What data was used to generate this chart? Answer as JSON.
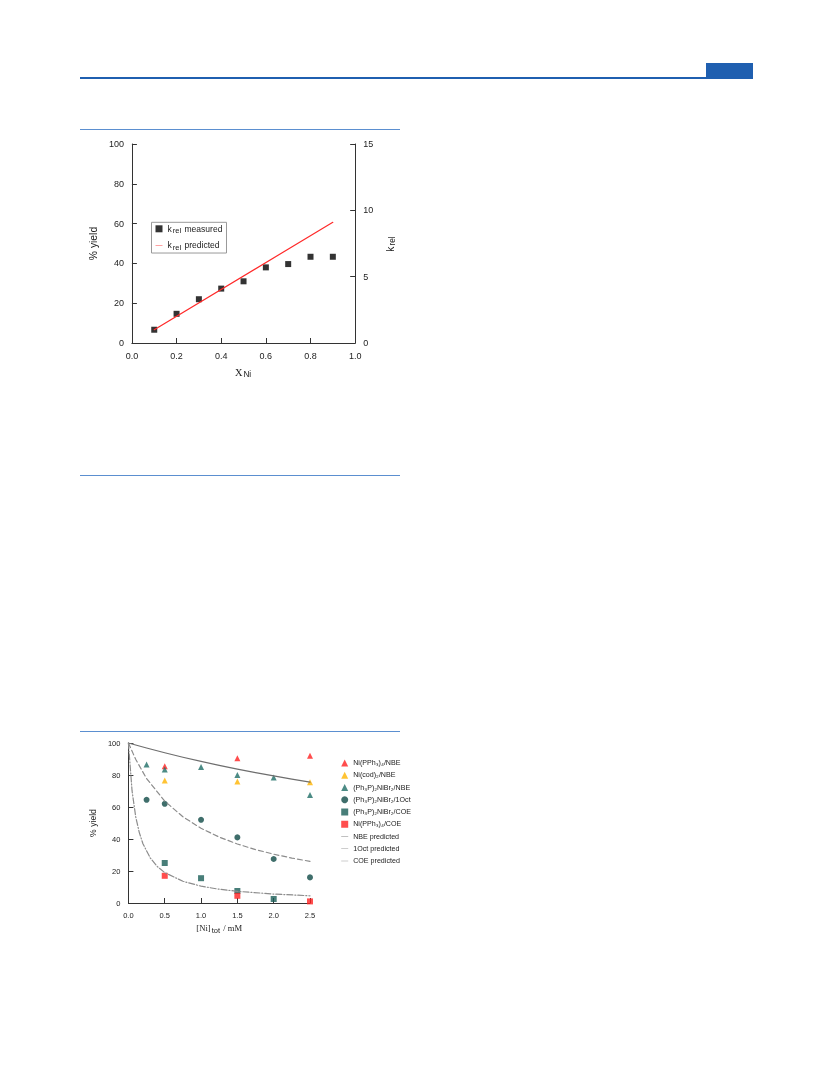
{
  "chart_data": [
    {
      "type": "scatter",
      "xlabel": "X$_{Ni}$",
      "ylabel": "% yield",
      "y2label": "k$_{rel}$",
      "legend": "left",
      "grid": false,
      "xlim": [
        0,
        1
      ],
      "xticks": [
        {
          "value": 0,
          "label": "0.0"
        },
        {
          "value": 0.2,
          "label": "0.2"
        },
        {
          "value": 0.4,
          "label": "0.4"
        },
        {
          "value": 0.6,
          "label": "0.6"
        },
        {
          "value": 0.8,
          "label": "0.8"
        },
        {
          "value": 1,
          "label": "1.0"
        }
      ],
      "ylim": [
        0,
        100
      ],
      "yticks": [
        0,
        20,
        40,
        60,
        80,
        100
      ],
      "y2lim": [
        0,
        15
      ],
      "y2ticks": [
        0,
        5,
        10,
        15
      ],
      "series": [
        {
          "name": "k$_{rel}$ measured",
          "axis": "y2",
          "marker": "square",
          "color": "#000000",
          "x": [
            0.1,
            0.2,
            0.3,
            0.4,
            0.5,
            0.6,
            0.7,
            0.8,
            0.9
          ],
          "values": [
            1.0,
            2.2,
            3.3,
            4.1,
            4.65,
            5.7,
            5.95,
            6.5,
            6.5
          ]
        },
        {
          "name": "k$_{rel}$ predicted",
          "type": "line",
          "axis": "y2",
          "marker": "none",
          "line_style": "solid",
          "color": "#ff2a2a",
          "x": [
            0.1,
            0.9
          ],
          "values": [
            1.0,
            9.1
          ]
        }
      ]
    },
    {
      "type": "scatter",
      "xlabel": "[Ni]$_{tot}$ / mM",
      "ylabel": "% yield",
      "legend": "right",
      "grid": false,
      "xlim": [
        0,
        2.5
      ],
      "xticks": [
        {
          "value": 0,
          "label": "0.0"
        },
        {
          "value": 0.5,
          "label": "0.5"
        },
        {
          "value": 1,
          "label": "1.0"
        },
        {
          "value": 1.5,
          "label": "1.5"
        },
        {
          "value": 2,
          "label": "2.0"
        },
        {
          "value": 2.5,
          "label": "2.5"
        }
      ],
      "ylim": [
        0,
        100
      ],
      "yticks": [
        0,
        20,
        40,
        60,
        80,
        100
      ],
      "series": [
        {
          "name": "Ni(PPh₃)₄/NBE",
          "marker": "triangle",
          "color": "#ff2020",
          "x": [
            0.5,
            1.5,
            2.5
          ],
          "values": [
            85.5,
            90.5,
            92
          ]
        },
        {
          "name": "Ni(cod)₂/NBE",
          "marker": "triangle",
          "color": "#ffb400",
          "x": [
            0.5,
            1.5,
            2.5
          ],
          "values": [
            76.5,
            76,
            75.5
          ]
        },
        {
          "name": "(Ph₃P)₂NiBr₂/NBE",
          "marker": "triangle",
          "color": "#1f6e66",
          "x": [
            0.25,
            0.5,
            1.0,
            1.5,
            2.0,
            2.5
          ],
          "values": [
            86.5,
            83.5,
            85,
            80,
            78.5,
            67.5
          ]
        },
        {
          "name": "(Ph₃P)₂NiBr₂/1Oct",
          "marker": "circle",
          "color": "#0f4a46",
          "x": [
            0.25,
            0.5,
            1.0,
            1.5,
            2.0,
            2.5
          ],
          "values": [
            64.5,
            62,
            52,
            41,
            27.5,
            16
          ]
        },
        {
          "name": "(Ph₃P)₂NiBr₂/COE",
          "marker": "square",
          "color": "#1a5e58",
          "x": [
            0.5,
            1.0,
            1.5,
            2.0
          ],
          "values": [
            25,
            15.5,
            7.5,
            2.5
          ]
        },
        {
          "name": "Ni(PPh₃)₄/COE",
          "marker": "square",
          "color": "#ff2020",
          "x": [
            0.5,
            1.5,
            2.5
          ],
          "values": [
            17,
            4.5,
            1
          ]
        },
        {
          "name": "NBE predicted",
          "type": "line",
          "marker": "none",
          "line_style": "solid",
          "color": "#6e6e6e",
          "x": [
            0,
            0.25,
            0.5,
            0.75,
            1.0,
            1.25,
            1.5,
            1.75,
            2.0,
            2.25,
            2.5
          ],
          "values": [
            100,
            96.9,
            93.9,
            91.1,
            88.5,
            86,
            83.7,
            81.5,
            79.4,
            77.4,
            75.5
          ]
        },
        {
          "name": "1Oct predicted",
          "type": "line",
          "marker": "none",
          "line_style": "dashed",
          "color": "#8c8c8c",
          "x": [
            0,
            0.1,
            0.25,
            0.5,
            0.75,
            1.0,
            1.25,
            1.5,
            1.75,
            2.0,
            2.25,
            2.5
          ],
          "values": [
            100,
            89.8,
            77.8,
            63.7,
            53.9,
            46.7,
            41.2,
            36.9,
            33.4,
            30.5,
            28.1,
            26
          ]
        },
        {
          "name": "COE predicted",
          "type": "line",
          "marker": "none",
          "line_style": "dotted",
          "color": "#8c8c8c",
          "x": [
            0,
            0.05,
            0.1,
            0.15,
            0.2,
            0.3,
            0.4,
            0.5,
            0.75,
            1.0,
            1.25,
            1.5,
            2.0,
            2.5
          ],
          "values": [
            100,
            70.2,
            54,
            44,
            37,
            28.2,
            22.7,
            19,
            13.6,
            10.5,
            8.6,
            7.3,
            5.6,
            4.5
          ]
        }
      ]
    }
  ]
}
